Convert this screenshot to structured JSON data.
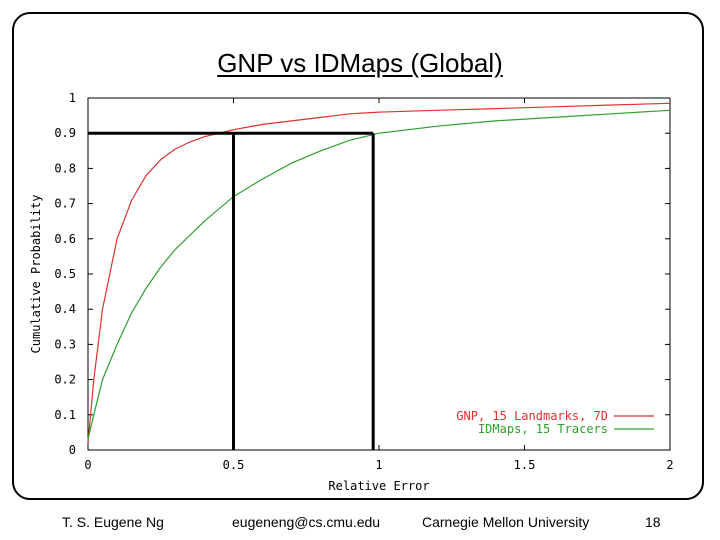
{
  "slide": {
    "title": "GNP vs IDMaps (Global)",
    "footer": {
      "author": "T. S. Eugene Ng",
      "email": "eugeneng@cs.cmu.edu",
      "institution": "Carnegie Mellon University",
      "page": "18"
    }
  },
  "chart_data": {
    "type": "line",
    "title": "",
    "xlabel": "Relative Error",
    "ylabel": "Cumulative Probability",
    "xlim": [
      0,
      2
    ],
    "ylim": [
      0,
      1
    ],
    "x_ticks": [
      "0",
      "0.5",
      "1",
      "1.5",
      "2"
    ],
    "y_ticks": [
      "0",
      "0.1",
      "0.2",
      "0.3",
      "0.4",
      "0.5",
      "0.6",
      "0.7",
      "0.8",
      "0.9",
      "1"
    ],
    "legend_position": "bottom-right",
    "grid": false,
    "series": [
      {
        "name": "GNP, 15 Landmarks, 7D",
        "color": "#e03030",
        "x": [
          0,
          0.02,
          0.05,
          0.1,
          0.15,
          0.2,
          0.25,
          0.3,
          0.35,
          0.4,
          0.45,
          0.5,
          0.6,
          0.7,
          0.8,
          0.9,
          1.0,
          1.2,
          1.4,
          1.6,
          1.8,
          2.0
        ],
        "y": [
          0.02,
          0.2,
          0.4,
          0.6,
          0.71,
          0.78,
          0.825,
          0.855,
          0.875,
          0.89,
          0.9,
          0.91,
          0.925,
          0.935,
          0.945,
          0.955,
          0.96,
          0.965,
          0.97,
          0.975,
          0.98,
          0.985
        ]
      },
      {
        "name": "IDMaps, 15 Tracers",
        "color": "#30a030",
        "x": [
          0,
          0.02,
          0.05,
          0.1,
          0.15,
          0.2,
          0.25,
          0.3,
          0.35,
          0.4,
          0.5,
          0.6,
          0.7,
          0.8,
          0.9,
          1.0,
          1.1,
          1.2,
          1.4,
          1.6,
          1.8,
          2.0
        ],
        "y": [
          0.03,
          0.1,
          0.2,
          0.3,
          0.39,
          0.46,
          0.52,
          0.57,
          0.61,
          0.65,
          0.72,
          0.77,
          0.815,
          0.85,
          0.88,
          0.9,
          0.91,
          0.92,
          0.935,
          0.945,
          0.955,
          0.965
        ]
      }
    ],
    "annotations": [
      {
        "type": "reference",
        "y": 0.9,
        "x": 0.5
      },
      {
        "type": "reference",
        "y": 0.9,
        "x": 0.98
      }
    ]
  }
}
